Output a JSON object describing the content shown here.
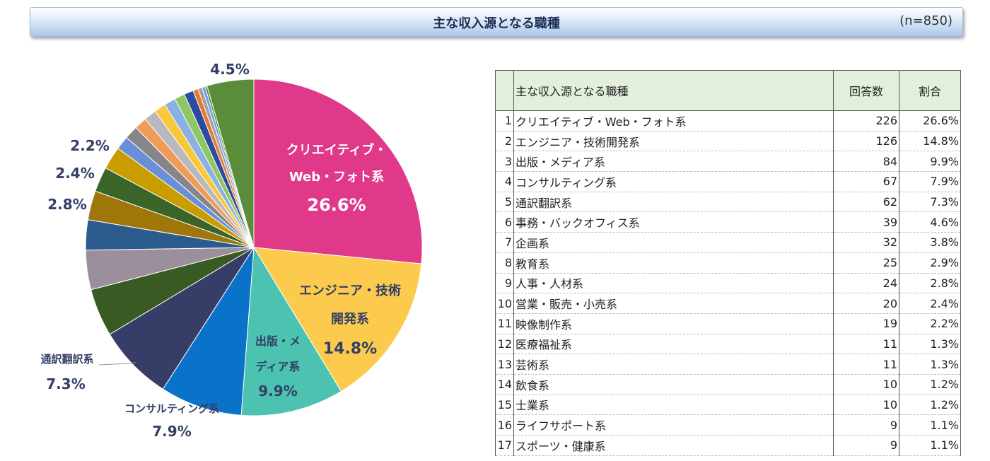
{
  "header": {
    "title": "主な収入源となる職種",
    "n": "(n=850)"
  },
  "table": {
    "col_job": "主な収入源となる職種",
    "col_count": "回答数",
    "col_ratio": "割合",
    "rows": [
      {
        "idx": "1",
        "job": "クリエイティブ・Web・フォト系",
        "count": "226",
        "ratio": "26.6%"
      },
      {
        "idx": "2",
        "job": "エンジニア・技術開発系",
        "count": "126",
        "ratio": "14.8%"
      },
      {
        "idx": "3",
        "job": "出版・メディア系",
        "count": "84",
        "ratio": "9.9%"
      },
      {
        "idx": "4",
        "job": "コンサルティング系",
        "count": "67",
        "ratio": "7.9%"
      },
      {
        "idx": "5",
        "job": "通訳翻訳系",
        "count": "62",
        "ratio": "7.3%"
      },
      {
        "idx": "6",
        "job": "事務・バックオフィス系",
        "count": "39",
        "ratio": "4.6%"
      },
      {
        "idx": "7",
        "job": "企画系",
        "count": "32",
        "ratio": "3.8%"
      },
      {
        "idx": "8",
        "job": "教育系",
        "count": "25",
        "ratio": "2.9%"
      },
      {
        "idx": "9",
        "job": "人事・人材系",
        "count": "24",
        "ratio": "2.8%"
      },
      {
        "idx": "10",
        "job": "営業・販売・小売系",
        "count": "20",
        "ratio": "2.4%"
      },
      {
        "idx": "11",
        "job": "映像制作系",
        "count": "19",
        "ratio": "2.2%"
      },
      {
        "idx": "12",
        "job": "医療福祉系",
        "count": "11",
        "ratio": "1.3%"
      },
      {
        "idx": "13",
        "job": "芸術系",
        "count": "11",
        "ratio": "1.3%"
      },
      {
        "idx": "14",
        "job": "飲食系",
        "count": "10",
        "ratio": "1.2%"
      },
      {
        "idx": "15",
        "job": "士業系",
        "count": "10",
        "ratio": "1.2%"
      },
      {
        "idx": "16",
        "job": "ライフサポート系",
        "count": "9",
        "ratio": "1.1%"
      },
      {
        "idx": "17",
        "job": "スポーツ・健康系",
        "count": "9",
        "ratio": "1.1%"
      }
    ]
  },
  "chart_data": {
    "type": "pie",
    "start_angle_deg": 0,
    "direction": "clockwise",
    "slices": [
      {
        "value": 26.6,
        "color": "#e0398a",
        "label_lines": [
          "クリエイティブ・",
          "Web・フォト系"
        ],
        "pct_label": "26.6%"
      },
      {
        "value": 14.8,
        "color": "#fccb4e",
        "label_lines": [
          "エンジニア・技術",
          "開発系"
        ],
        "pct_label": "14.8%"
      },
      {
        "value": 9.9,
        "color": "#4cc3b1",
        "label_lines": [
          "出版・メ",
          "ディア系"
        ],
        "pct_label": "9.9%"
      },
      {
        "value": 7.9,
        "color": "#0a72c8",
        "label_lines": [
          "コンサルティング系"
        ],
        "pct_label": "7.9%"
      },
      {
        "value": 7.3,
        "color": "#363d66",
        "label_lines": [
          "通訳翻訳系"
        ],
        "pct_label": "7.3%"
      },
      {
        "value": 4.6,
        "color": "#3a5a24"
      },
      {
        "value": 3.8,
        "color": "#9b8f9c"
      },
      {
        "value": 2.9,
        "color": "#2a5b8c"
      },
      {
        "value": 2.8,
        "color": "#9f760a",
        "pct_label": "2.8%"
      },
      {
        "value": 2.4,
        "color": "#3b6428",
        "pct_label": "2.4%"
      },
      {
        "value": 2.2,
        "color": "#c99d00",
        "pct_label": "2.2%"
      },
      {
        "value": 1.3,
        "color": "#6a8fd6"
      },
      {
        "value": 1.3,
        "color": "#85858a"
      },
      {
        "value": 1.2,
        "color": "#f09c58"
      },
      {
        "value": 1.2,
        "color": "#b9b9bd"
      },
      {
        "value": 1.1,
        "color": "#f8c839"
      },
      {
        "value": 1.1,
        "color": "#8bb1e3"
      },
      {
        "value": 1.0,
        "color": "#90c563"
      },
      {
        "value": 0.9,
        "color": "#2b4aa0"
      },
      {
        "value": 0.5,
        "color": "#e57b2c"
      },
      {
        "value": 0.4,
        "color": "#a0a0a0"
      },
      {
        "value": 0.3,
        "color": "#6fa0dc"
      },
      {
        "value": 0.2,
        "color": "#4f8a36"
      },
      {
        "value": 4.5,
        "color": "#5b8c3a",
        "pct_label": "4.5%"
      }
    ]
  }
}
